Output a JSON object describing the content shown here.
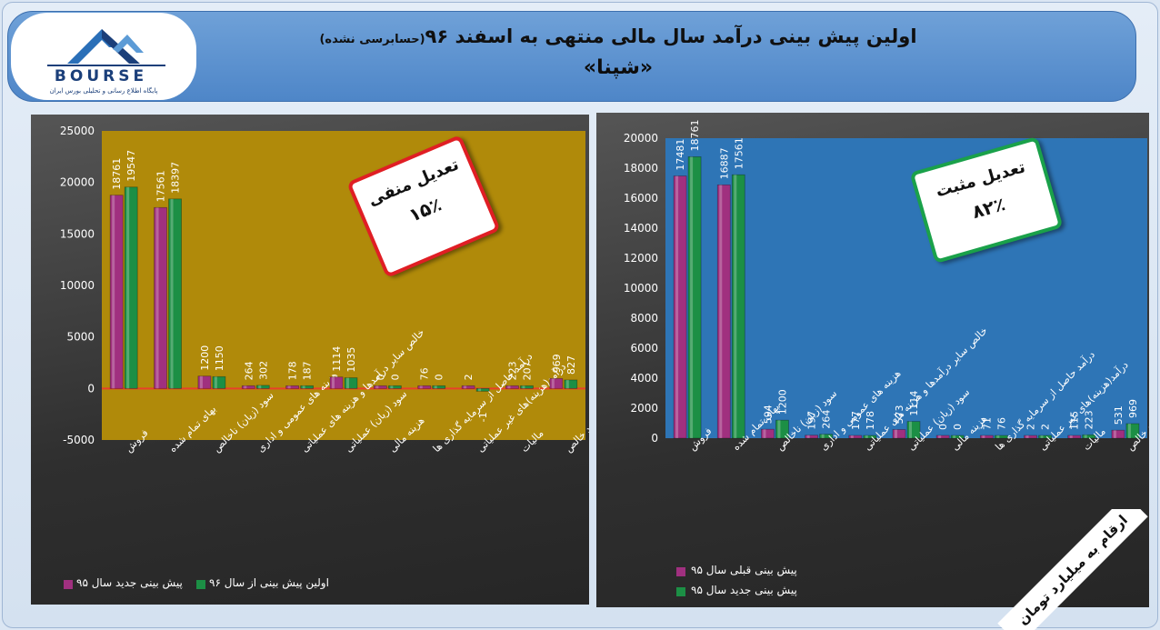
{
  "header": {
    "title_main": "اولین پیش بینی درآمد سال مالی منتهی به اسفند ۹۶",
    "title_note": "(حسابرسی نشده)",
    "symbol": "«شپنا»"
  },
  "logo": {
    "word": "BOURSE",
    "tagline": "پایگاه اطلاع رسانی و تحلیلی بورس ایران"
  },
  "units_note": "ارقام به میلیارد تومان",
  "colors": {
    "magenta": "#a0307f",
    "green": "#1c8f45",
    "left_plot_bg": "#b08a0a",
    "right_plot_bg": "#2e75b6",
    "zero_line": "#e8402a"
  },
  "left_callout": {
    "title": "تعدیل منفی",
    "value": "۱۵٪"
  },
  "right_callout": {
    "title": "تعدیل مثبت",
    "value": "۸۲٪"
  },
  "chart_data": [
    {
      "type": "bar",
      "ylim": [
        -5000,
        25000
      ],
      "yticks": [
        -5000,
        0,
        5000,
        10000,
        15000,
        20000,
        25000
      ],
      "categories": [
        "فروش",
        "بهای تمام شده",
        "سود (زیان) ناخالص",
        "هزینه های عمومی و اداری",
        "خالص سایر درآمدها و هزینه های عملیاتی",
        "سود (زیان) عملیاتی",
        "هزینه مالی",
        "درآمد حاصل از سرمایه گذاری ها",
        "درآمد(هزینه)های غیر عملیاتی",
        "مالیات",
        "سود خالص"
      ],
      "series": [
        {
          "name": "پیش بینی جدید سال ۹۵",
          "color": "#a0307f",
          "values": [
            18761,
            17561,
            1200,
            264,
            178,
            1114,
            0,
            76,
            2,
            223,
            969
          ],
          "labels": [
            "18761",
            "17561",
            "1200",
            "264",
            "178",
            "1114",
            "0",
            "76",
            "2",
            "223",
            "969"
          ]
        },
        {
          "name": "اولین پیش بینی از سال ۹۶",
          "color": "#1c8f45",
          "values": [
            19547,
            18397,
            1150,
            302,
            187,
            1035,
            0,
            0,
            -1,
            207,
            827
          ],
          "labels": [
            "19547",
            "18397",
            "1150",
            "302",
            "187",
            "1035",
            "0",
            "0",
            "-1",
            "207",
            "827"
          ]
        }
      ],
      "legend_position": "bottom"
    },
    {
      "type": "bar",
      "ylim": [
        0,
        20000
      ],
      "yticks": [
        0,
        2000,
        4000,
        6000,
        8000,
        10000,
        12000,
        14000,
        16000,
        18000,
        20000
      ],
      "categories": [
        "فروش",
        "بهای تمام شده",
        "سود (زیان) ناخالص",
        "هزینه های عمومی و اداری",
        "خالص سایر درآمدها و هزینه های عملیاتی",
        "سود (زیان) عملیاتی",
        "هزینه مالی",
        "درآمد حاصل از سرمایه گذاری ها",
        "درآمد(هزینه)های غیر عملیاتی",
        "مالیات",
        "سود خالص"
      ],
      "series": [
        {
          "name": "پیش بینی قبلی سال ۹۵",
          "color": "#a0307f",
          "values": [
            17481,
            16887,
            594,
            197,
            177,
            573,
            0,
            71,
            2,
            115,
            531
          ],
          "labels": [
            "17481",
            "16887",
            "594",
            "197",
            "177",
            "573",
            "0",
            "71",
            "2",
            "115",
            "531"
          ]
        },
        {
          "name": "پیش بینی جدید سال ۹۵",
          "color": "#1c8f45",
          "values": [
            18761,
            17561,
            1200,
            264,
            178,
            1114,
            0,
            76,
            2,
            223,
            969
          ],
          "labels": [
            "18761",
            "17561",
            "1200",
            "264",
            "178",
            "1114",
            "0",
            "76",
            "2",
            "223",
            "969"
          ]
        }
      ],
      "legend_position": "bottom-left"
    }
  ]
}
